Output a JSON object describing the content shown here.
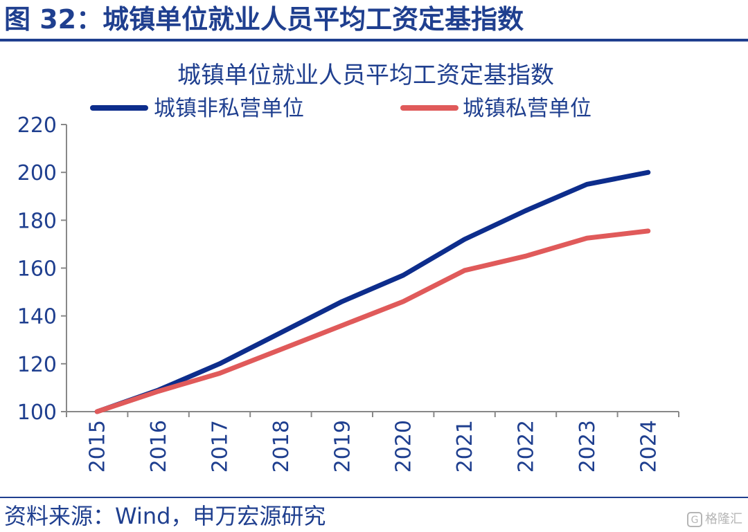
{
  "figure": {
    "header": "图 32：城镇单位就业人员平均工资定基指数",
    "source": "资料来源：Wind，申万宏源研究",
    "watermark": "格隆汇",
    "watermark_icon": "g-logo-icon"
  },
  "colors": {
    "brand": "#1f3f8f",
    "series_non_private": "#0d2d8c",
    "series_private": "#e05a5a",
    "axis": "#888888"
  },
  "chart_data": {
    "type": "line",
    "title": "城镇单位就业人员平均工资定基指数",
    "xlabel": "",
    "ylabel": "",
    "categories": [
      "2015",
      "2016",
      "2017",
      "2018",
      "2019",
      "2020",
      "2021",
      "2022",
      "2023",
      "2024"
    ],
    "series": [
      {
        "name": "城镇非私营单位",
        "values": [
          100,
          109,
          120,
          133,
          146,
          157,
          172,
          184,
          195,
          200
        ]
      },
      {
        "name": "城镇私营单位",
        "values": [
          100,
          108.5,
          116,
          126,
          136,
          146,
          159,
          165,
          172.5,
          175.5
        ]
      }
    ],
    "ylim": [
      100,
      220
    ],
    "yticks": [
      "100",
      "120",
      "140",
      "160",
      "180",
      "200",
      "220"
    ],
    "grid": false,
    "legend": "top"
  }
}
